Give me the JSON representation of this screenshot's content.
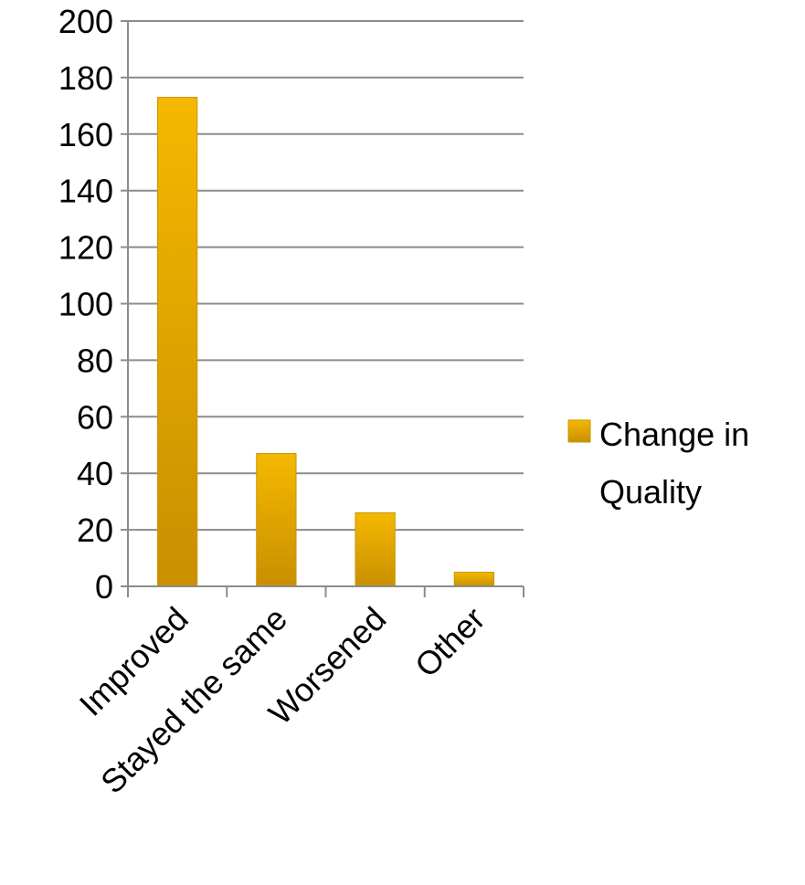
{
  "chart_data": {
    "type": "bar",
    "title": "",
    "xlabel": "",
    "ylabel": "",
    "categories": [
      "Improved",
      "Stayed the same",
      "Worsened",
      "Other"
    ],
    "series": [
      {
        "name": "Change in Quality",
        "values": [
          173,
          47,
          26,
          5
        ]
      }
    ],
    "ylim": [
      0,
      200
    ],
    "yticks": [
      "0",
      "20",
      "40",
      "60",
      "80",
      "100",
      "120",
      "140",
      "160",
      "180",
      "200"
    ],
    "grid": true,
    "legend_position": "right",
    "legend_label_lines": [
      "Change in",
      "Quality"
    ],
    "colors": {
      "bar_light": "#f5b800",
      "bar_dark": "#c98f00",
      "grid": "#8c8c8c"
    }
  }
}
